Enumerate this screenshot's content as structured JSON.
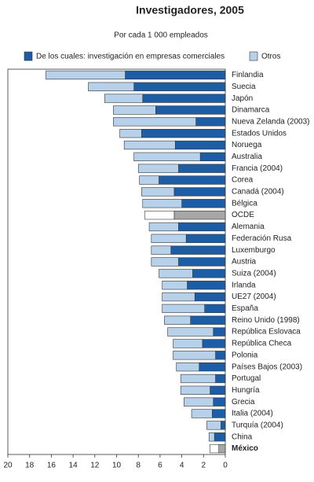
{
  "chart_data": {
    "type": "stacked-barh",
    "title": "Investigadores, 2005",
    "subtitle": "Por cada 1 000 empleados",
    "categories": [
      "Finlandia",
      "Suecia",
      "Japón",
      "Dinamarca",
      "Nueva Zelanda (2003)",
      "Estados Unidos",
      "Noruega",
      "Australia",
      "Francia (2004)",
      "Corea",
      "Canadá (2004)",
      "Bélgica",
      "OCDE",
      "Alemania",
      "Federación Rusa",
      "Luxemburgo",
      "Austria",
      "Suiza (2004)",
      "Irlanda",
      "UE27 (2004)",
      "España",
      "Reino Unido  (1998)",
      "República Eslovaca",
      "República Checa",
      "Polonia",
      "Países Bajos (2003)",
      "Portugal",
      "Hungría",
      "Grecia",
      "Italia (2004)",
      "Turquía (2004)",
      "China",
      "México"
    ],
    "bold_category": "México",
    "series": [
      {
        "name": "De los cuales: investigación en empresas comerciales",
        "color": "#1c5da6",
        "values": [
          9.2,
          8.4,
          7.6,
          6.4,
          2.7,
          7.7,
          4.6,
          2.3,
          4.3,
          6.1,
          4.7,
          4.0,
          4.7,
          4.3,
          3.6,
          5.0,
          4.3,
          3.0,
          3.5,
          2.8,
          1.9,
          3.2,
          1.1,
          2.1,
          0.9,
          2.4,
          0.9,
          1.4,
          1.1,
          1.2,
          0.4,
          1.0,
          0.6
        ],
        "point_colors": [
          "#1c5da6",
          "#1c5da6",
          "#1c5da6",
          "#1c5da6",
          "#1c5da6",
          "#1c5da6",
          "#1c5da6",
          "#1c5da6",
          "#1c5da6",
          "#1c5da6",
          "#1c5da6",
          "#1c5da6",
          "#a6a6a6",
          "#1c5da6",
          "#1c5da6",
          "#1c5da6",
          "#1c5da6",
          "#1c5da6",
          "#1c5da6",
          "#1c5da6",
          "#1c5da6",
          "#1c5da6",
          "#1c5da6",
          "#1c5da6",
          "#1c5da6",
          "#1c5da6",
          "#1c5da6",
          "#1c5da6",
          "#1c5da6",
          "#1c5da6",
          "#1c5da6",
          "#1c5da6",
          "#a6a6a6"
        ]
      },
      {
        "name": "Otros",
        "color": "#b8d1ea",
        "values": [
          7.3,
          4.2,
          3.5,
          3.9,
          7.6,
          2.0,
          4.7,
          6.1,
          3.7,
          1.8,
          3.0,
          3.6,
          2.7,
          2.7,
          3.2,
          1.8,
          2.5,
          3.1,
          2.3,
          3.0,
          3.9,
          2.4,
          4.2,
          2.7,
          3.9,
          2.1,
          3.2,
          2.7,
          2.7,
          1.9,
          1.3,
          0.5,
          0.8
        ],
        "point_colors": [
          "#b8d1ea",
          "#b8d1ea",
          "#b8d1ea",
          "#b8d1ea",
          "#b8d1ea",
          "#b8d1ea",
          "#b8d1ea",
          "#b8d1ea",
          "#b8d1ea",
          "#b8d1ea",
          "#b8d1ea",
          "#b8d1ea",
          "#ffffff",
          "#b8d1ea",
          "#b8d1ea",
          "#b8d1ea",
          "#b8d1ea",
          "#b8d1ea",
          "#b8d1ea",
          "#b8d1ea",
          "#b8d1ea",
          "#b8d1ea",
          "#b8d1ea",
          "#b8d1ea",
          "#b8d1ea",
          "#b8d1ea",
          "#b8d1ea",
          "#b8d1ea",
          "#b8d1ea",
          "#b8d1ea",
          "#b8d1ea",
          "#b8d1ea",
          "#ffffff"
        ]
      }
    ],
    "xlim": [
      20,
      0
    ],
    "xticks": [
      20,
      18,
      16,
      14,
      12,
      10,
      8,
      6,
      4,
      2,
      0
    ]
  }
}
